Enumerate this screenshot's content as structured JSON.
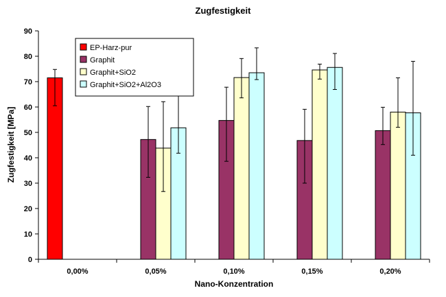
{
  "chart_data": {
    "type": "bar",
    "title": "Zugfestigkeit",
    "xlabel": "Nano-Konzentration",
    "ylabel": "Zugfestigkeit [MPa]",
    "ylim": [
      0,
      90
    ],
    "yticks": [
      0,
      10,
      20,
      30,
      40,
      50,
      60,
      70,
      80,
      90
    ],
    "grid": false,
    "legend_position": "top-left",
    "categories": [
      "0,00%",
      "0,05%",
      "0,10%",
      "0,15%",
      "0,20%"
    ],
    "series": [
      {
        "name": "EP-Harz-pur",
        "color": "#ff0000",
        "values": [
          71.5,
          null,
          null,
          null,
          null
        ],
        "error_low": [
          60.5,
          null,
          null,
          null,
          null
        ],
        "error_high": [
          74.8,
          null,
          null,
          null,
          null
        ]
      },
      {
        "name": "Graphit",
        "color": "#993366",
        "values": [
          null,
          47.2,
          54.7,
          46.8,
          50.7
        ],
        "error_low": [
          null,
          32.3,
          38.6,
          30.0,
          45.2
        ],
        "error_high": [
          null,
          60.2,
          67.8,
          59.1,
          59.9
        ]
      },
      {
        "name": "Graphit+SiO2",
        "color": "#ffffcc",
        "values": [
          null,
          43.8,
          71.6,
          74.6,
          58.0
        ],
        "error_low": [
          null,
          26.7,
          63.6,
          71.0,
          52.0
        ],
        "error_high": [
          null,
          62.1,
          79.1,
          76.9,
          71.5
        ]
      },
      {
        "name": "Graphit+SiO2+Al2O3",
        "color": "#ccffff",
        "values": [
          null,
          51.8,
          73.5,
          75.6,
          57.7
        ],
        "error_low": [
          null,
          41.8,
          70.8,
          66.9,
          41.0
        ],
        "error_high": [
          null,
          76.7,
          83.3,
          81.1,
          78.0
        ]
      }
    ]
  }
}
